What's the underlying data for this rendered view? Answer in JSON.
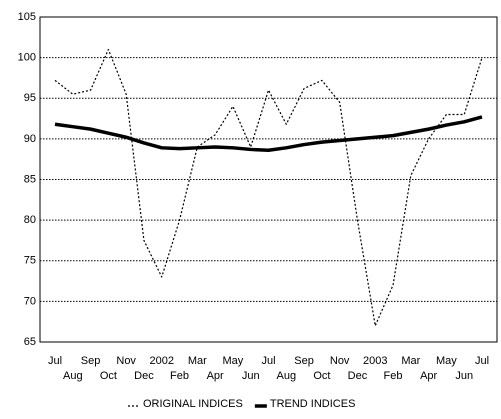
{
  "chart_data": {
    "type": "line",
    "categories": [
      "Jul",
      "Aug",
      "Sep",
      "Oct",
      "Nov",
      "Dec",
      "2002",
      "Feb",
      "Mar",
      "Apr",
      "May",
      "Jun",
      "Jul",
      "Aug",
      "Sep",
      "Oct",
      "Nov",
      "Dec",
      "2003",
      "Feb",
      "Mar",
      "Apr",
      "May",
      "Jun",
      "Jul"
    ],
    "series": [
      {
        "name": "ORIGINAL INDICES",
        "color": "#000000",
        "style": "dotted",
        "values": [
          97.2,
          95.5,
          96,
          101,
          95.5,
          77.5,
          73,
          80,
          89,
          90.5,
          94,
          89,
          96,
          91.8,
          96.2,
          97.2,
          94.5,
          80,
          67,
          72,
          85.5,
          90,
          93,
          93,
          100
        ]
      },
      {
        "name": "TREND INDICES",
        "color": "#000000",
        "style": "solid",
        "values": [
          91.8,
          91.5,
          91.2,
          90.7,
          90.2,
          89.5,
          88.9,
          88.8,
          88.9,
          89,
          88.9,
          88.7,
          88.6,
          88.9,
          89.3,
          89.6,
          89.8,
          90,
          90.2,
          90.4,
          90.8,
          91.2,
          91.7,
          92.1,
          92.7
        ]
      }
    ],
    "ylim": [
      65,
      105
    ],
    "yticks": [
      65,
      70,
      75,
      80,
      85,
      90,
      95,
      100,
      105
    ],
    "grid": true,
    "legend": "bottom"
  }
}
